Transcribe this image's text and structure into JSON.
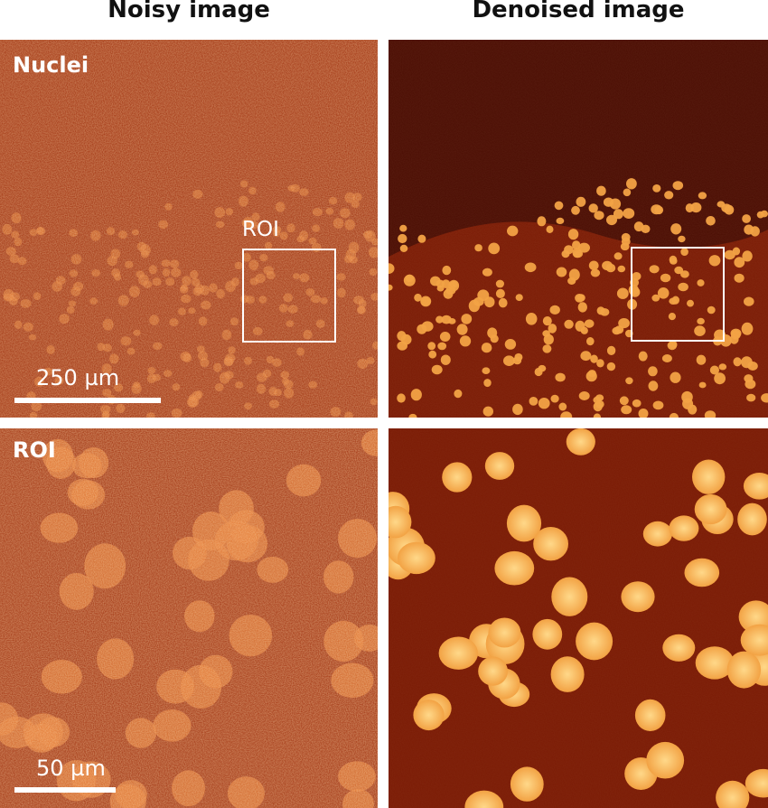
{
  "headers": {
    "left": "Noisy image",
    "right": "Denoised image"
  },
  "labels": {
    "top_row": "Nuclei",
    "bottom_row": "ROI",
    "roi_marker": "ROI"
  },
  "scale_bars": {
    "overview": "250 µm",
    "roi": "50 µm"
  },
  "colors": {
    "noisy_bg": "#9c2a08",
    "noisy_blob": "#e2742c",
    "denoised_bg": "#4a0c02",
    "denoised_region": "#7a1a04",
    "denoised_blob": "#f2a040",
    "blob_core": "#ffd888",
    "roi_box": "#ffffff"
  }
}
